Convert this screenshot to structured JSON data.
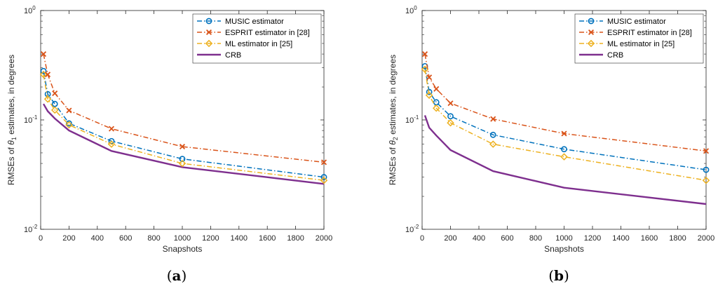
{
  "chart_data": [
    {
      "type": "line",
      "panel_label": "a",
      "xlabel": "Snapshots",
      "ylabel_prefix": "RMSEs of ",
      "ylabel_symbol": "θ",
      "ylabel_sub": "1",
      "ylabel_suffix": " estimates, in degrees",
      "xlim": [
        0,
        2000
      ],
      "ylim": [
        0.01,
        1
      ],
      "yscale": "log",
      "xticks": [
        "0",
        "200",
        "400",
        "600",
        "800",
        "1000",
        "1200",
        "1400",
        "1600",
        "1800",
        "2000"
      ],
      "yticks": [
        {
          "base": "10",
          "exp": "0"
        },
        {
          "base": "10",
          "exp": "-1"
        },
        {
          "base": "10",
          "exp": "-2"
        }
      ],
      "legend_position": "top-right",
      "series": [
        {
          "name": "MUSIC estimator",
          "marker": "circle",
          "style": "dashdot",
          "color": "#0072BD",
          "x": [
            20,
            50,
            100,
            200,
            500,
            1000,
            2000
          ],
          "values": [
            0.28,
            0.172,
            0.14,
            0.093,
            0.064,
            0.044,
            0.03
          ]
        },
        {
          "name": "ESPRIT estimator in [28]",
          "marker": "x",
          "style": "dashdot",
          "color": "#D95319",
          "x": [
            20,
            50,
            100,
            200,
            500,
            1000,
            2000
          ],
          "values": [
            0.4,
            0.26,
            0.175,
            0.122,
            0.083,
            0.057,
            0.041
          ]
        },
        {
          "name": "ML estimator in [25]",
          "marker": "diamond",
          "style": "dashdot",
          "color": "#EDB120",
          "x": [
            20,
            50,
            100,
            200,
            500,
            1000,
            2000
          ],
          "values": [
            0.26,
            0.155,
            0.123,
            0.09,
            0.06,
            0.04,
            0.028
          ]
        },
        {
          "name": "CRB",
          "marker": "none",
          "style": "solid",
          "color": "#7E2F8E",
          "x": [
            20,
            50,
            100,
            200,
            500,
            1000,
            2000
          ],
          "values": [
            0.14,
            0.12,
            0.103,
            0.08,
            0.052,
            0.037,
            0.026
          ]
        }
      ]
    },
    {
      "type": "line",
      "panel_label": "b",
      "xlabel": "Snapshots",
      "ylabel_prefix": "RMSEs of ",
      "ylabel_symbol": "θ",
      "ylabel_sub": "2",
      "ylabel_suffix": " estimates, in degrees",
      "xlim": [
        0,
        2000
      ],
      "ylim": [
        0.01,
        1
      ],
      "yscale": "log",
      "xticks": [
        "0",
        "200",
        "400",
        "600",
        "800",
        "1000",
        "1200",
        "1400",
        "1600",
        "1800",
        "2000"
      ],
      "yticks": [
        {
          "base": "10",
          "exp": "0"
        },
        {
          "base": "10",
          "exp": "-1"
        },
        {
          "base": "10",
          "exp": "-2"
        }
      ],
      "legend_position": "top-right",
      "series": [
        {
          "name": "MUSIC estimator",
          "marker": "circle",
          "style": "dashdot",
          "color": "#0072BD",
          "x": [
            20,
            50,
            100,
            200,
            500,
            1000,
            2000
          ],
          "values": [
            0.31,
            0.18,
            0.145,
            0.108,
            0.073,
            0.054,
            0.035
          ]
        },
        {
          "name": "ESPRIT estimator in [28]",
          "marker": "x",
          "style": "dashdot",
          "color": "#D95319",
          "x": [
            20,
            50,
            100,
            200,
            500,
            1000,
            2000
          ],
          "values": [
            0.4,
            0.245,
            0.192,
            0.142,
            0.102,
            0.075,
            0.052
          ]
        },
        {
          "name": "ML estimator in [25]",
          "marker": "diamond",
          "style": "dashdot",
          "color": "#EDB120",
          "x": [
            20,
            50,
            100,
            200,
            500,
            1000,
            2000
          ],
          "values": [
            0.29,
            0.168,
            0.128,
            0.094,
            0.06,
            0.046,
            0.028
          ]
        },
        {
          "name": "CRB",
          "marker": "none",
          "style": "solid",
          "color": "#7E2F8E",
          "x": [
            20,
            50,
            100,
            200,
            500,
            1000,
            2000
          ],
          "values": [
            0.11,
            0.085,
            0.072,
            0.053,
            0.034,
            0.024,
            0.017
          ]
        }
      ]
    }
  ]
}
